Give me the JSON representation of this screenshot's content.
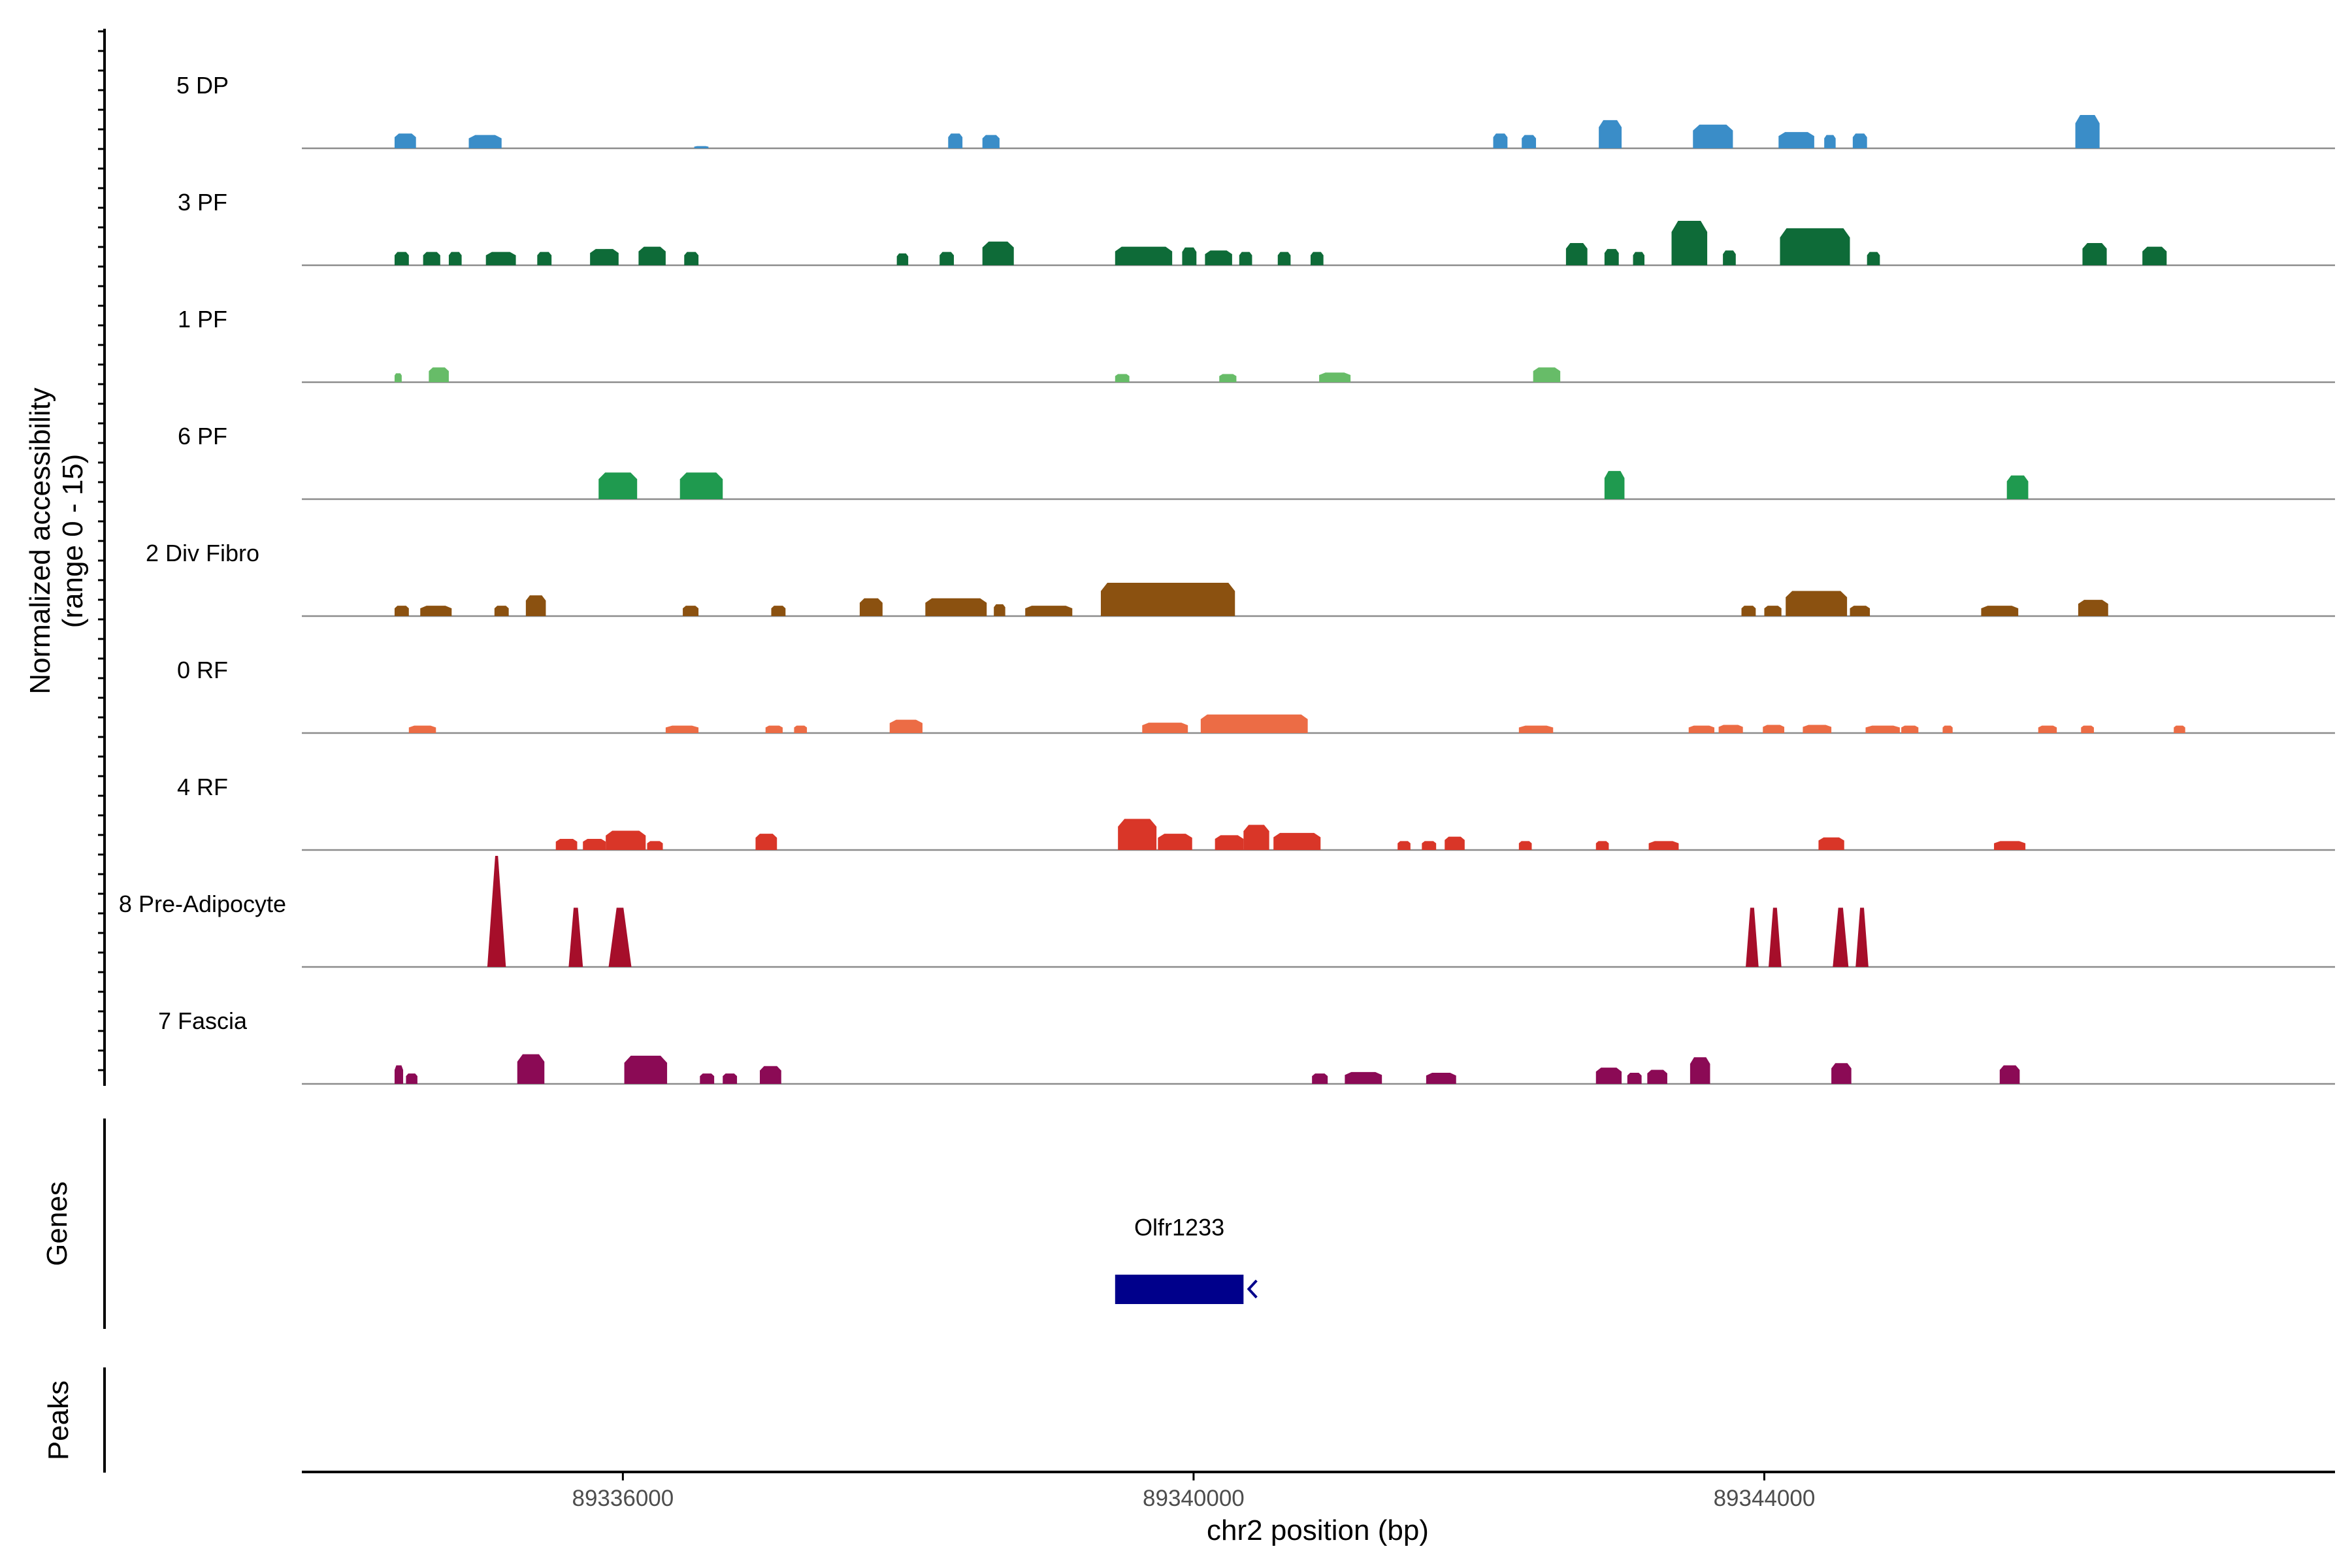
{
  "chart_data": {
    "type": "area",
    "coverage_ylabel_line1": "Normalized accessibility",
    "coverage_ylabel_line2": "(range 0 - 15)",
    "genes_label": "Genes",
    "peaks_label": "Peaks",
    "xlabel": "chr2 position (bp)",
    "x_ticks": [
      "89336000",
      "89340000",
      "89344000"
    ],
    "x_tick_values": [
      89336000,
      89340000,
      89344000
    ],
    "xlim": [
      89333750,
      89348000
    ],
    "ylim": [
      0,
      15
    ],
    "tracks": [
      {
        "name": "5 DP",
        "color": "#3A8DC8",
        "peaks": [
          [
            89334400,
            89334550,
            2.0
          ],
          [
            89334920,
            89335150,
            1.8
          ],
          [
            89336500,
            89336600,
            0.3
          ],
          [
            89338280,
            89338380,
            2.0
          ],
          [
            89338520,
            89338640,
            1.8
          ],
          [
            89342100,
            89342200,
            2.0
          ],
          [
            89342300,
            89342400,
            1.8
          ],
          [
            89342840,
            89343000,
            3.8
          ],
          [
            89343500,
            89343780,
            3.2
          ],
          [
            89344100,
            89344350,
            2.2
          ],
          [
            89344420,
            89344500,
            1.8
          ],
          [
            89344620,
            89344720,
            2.0
          ],
          [
            89346180,
            89346350,
            4.5
          ]
        ]
      },
      {
        "name": "3 PF",
        "color": "#0E6B38",
        "peaks": [
          [
            89334400,
            89334500,
            1.8
          ],
          [
            89334600,
            89334720,
            1.8
          ],
          [
            89334780,
            89334870,
            1.8
          ],
          [
            89335040,
            89335250,
            1.8
          ],
          [
            89335400,
            89335500,
            1.8
          ],
          [
            89335770,
            89335970,
            2.2
          ],
          [
            89336110,
            89336300,
            2.5
          ],
          [
            89336430,
            89336530,
            1.8
          ],
          [
            89337920,
            89338000,
            1.6
          ],
          [
            89338220,
            89338320,
            1.8
          ],
          [
            89338520,
            89338740,
            3.2
          ],
          [
            89339450,
            89339850,
            2.5
          ],
          [
            89339920,
            89340020,
            2.4
          ],
          [
            89340080,
            89340270,
            2.0
          ],
          [
            89340320,
            89340410,
            1.8
          ],
          [
            89340590,
            89340680,
            1.8
          ],
          [
            89340820,
            89340910,
            1.8
          ],
          [
            89342610,
            89342760,
            3.0
          ],
          [
            89342880,
            89342980,
            2.2
          ],
          [
            89343080,
            89343160,
            1.8
          ],
          [
            89343350,
            89343600,
            6.0
          ],
          [
            89343710,
            89343800,
            2.0
          ],
          [
            89344110,
            89344600,
            5.0
          ],
          [
            89344720,
            89344810,
            1.8
          ],
          [
            89346230,
            89346400,
            3.0
          ],
          [
            89346650,
            89346820,
            2.5
          ]
        ]
      },
      {
        "name": "1 PF",
        "color": "#67BC68",
        "peaks": [
          [
            89334400,
            89334450,
            1.2
          ],
          [
            89334640,
            89334780,
            2.0
          ],
          [
            89339450,
            89339550,
            1.1
          ],
          [
            89340180,
            89340300,
            1.1
          ],
          [
            89340880,
            89341100,
            1.3
          ],
          [
            89342380,
            89342570,
            2.0
          ]
        ]
      },
      {
        "name": "6 PF",
        "color": "#1F9A4F",
        "peaks": [
          [
            89335830,
            89336100,
            3.6
          ],
          [
            89336400,
            89336700,
            3.6
          ],
          [
            89342880,
            89343020,
            3.8
          ],
          [
            89345700,
            89345850,
            3.2
          ]
        ]
      },
      {
        "name": "2 Div Fibro",
        "color": "#8B5110",
        "peaks": [
          [
            89334400,
            89334500,
            1.4
          ],
          [
            89334580,
            89334800,
            1.4
          ],
          [
            89335100,
            89335200,
            1.4
          ],
          [
            89335320,
            89335460,
            2.8
          ],
          [
            89336420,
            89336530,
            1.4
          ],
          [
            89337040,
            89337140,
            1.4
          ],
          [
            89337660,
            89337820,
            2.4
          ],
          [
            89338120,
            89338550,
            2.4
          ],
          [
            89338600,
            89338680,
            1.6
          ],
          [
            89338820,
            89339150,
            1.4
          ],
          [
            89339350,
            89340290,
            4.5
          ],
          [
            89343840,
            89343940,
            1.4
          ],
          [
            89344000,
            89344120,
            1.4
          ],
          [
            89344150,
            89344580,
            3.4
          ],
          [
            89344600,
            89344740,
            1.4
          ],
          [
            89345520,
            89345780,
            1.4
          ],
          [
            89346200,
            89346410,
            2.2
          ]
        ]
      },
      {
        "name": "0 RF",
        "color": "#EC6C45",
        "peaks": [
          [
            89334500,
            89334690,
            1.0
          ],
          [
            89336300,
            89336530,
            1.0
          ],
          [
            89337000,
            89337120,
            1.0
          ],
          [
            89337200,
            89337290,
            1.0
          ],
          [
            89337870,
            89338100,
            1.8
          ],
          [
            89339640,
            89339960,
            1.4
          ],
          [
            89340050,
            89340800,
            2.5
          ],
          [
            89342280,
            89342520,
            1.0
          ],
          [
            89343470,
            89343650,
            1.0
          ],
          [
            89343680,
            89343850,
            1.1
          ],
          [
            89343990,
            89344140,
            1.1
          ],
          [
            89344270,
            89344470,
            1.1
          ],
          [
            89344710,
            89344950,
            1.0
          ],
          [
            89344960,
            89345080,
            1.0
          ],
          [
            89345250,
            89345320,
            1.0
          ],
          [
            89345920,
            89346050,
            1.0
          ],
          [
            89346220,
            89346310,
            1.0
          ],
          [
            89346870,
            89346950,
            1.0
          ]
        ]
      },
      {
        "name": "4 RF",
        "color": "#D93628",
        "peaks": [
          [
            89335530,
            89335680,
            1.5
          ],
          [
            89335720,
            89335880,
            1.5
          ],
          [
            89335880,
            89336160,
            2.6
          ],
          [
            89336170,
            89336280,
            1.2
          ],
          [
            89336930,
            89337080,
            2.2
          ],
          [
            89339470,
            89339740,
            4.2
          ],
          [
            89339750,
            89339990,
            2.2
          ],
          [
            89340150,
            89340350,
            2.0
          ],
          [
            89340350,
            89340530,
            3.4
          ],
          [
            89340560,
            89340890,
            2.3
          ],
          [
            89341430,
            89341520,
            1.2
          ],
          [
            89341600,
            89341700,
            1.2
          ],
          [
            89341760,
            89341900,
            1.8
          ],
          [
            89342280,
            89342370,
            1.2
          ],
          [
            89342820,
            89342910,
            1.2
          ],
          [
            89343190,
            89343400,
            1.2
          ],
          [
            89344380,
            89344560,
            1.7
          ],
          [
            89345610,
            89345830,
            1.2
          ]
        ]
      },
      {
        "name": "8 Pre-Adipocyte",
        "color": "#A60E2A",
        "peaks": [
          [
            89335050,
            89335180,
            15.0
          ],
          [
            89335620,
            89335720,
            8.0
          ],
          [
            89335900,
            89336060,
            8.0
          ],
          [
            89343870,
            89343960,
            8.0
          ],
          [
            89344030,
            89344120,
            8.0
          ],
          [
            89344480,
            89344590,
            8.0
          ],
          [
            89344640,
            89344730,
            8.0
          ]
        ]
      },
      {
        "name": "7 Fascia",
        "color": "#8B0A55",
        "peaks": [
          [
            89334400,
            89334460,
            2.5
          ],
          [
            89334480,
            89334560,
            1.4
          ],
          [
            89335260,
            89335450,
            4.0
          ],
          [
            89336010,
            89336310,
            3.8
          ],
          [
            89336540,
            89336640,
            1.4
          ],
          [
            89336700,
            89336800,
            1.4
          ],
          [
            89336960,
            89337110,
            2.4
          ],
          [
            89340830,
            89340940,
            1.4
          ],
          [
            89341060,
            89341320,
            1.6
          ],
          [
            89341630,
            89341840,
            1.5
          ],
          [
            89342820,
            89343000,
            2.2
          ],
          [
            89343040,
            89343140,
            1.5
          ],
          [
            89343180,
            89343320,
            1.9
          ],
          [
            89343480,
            89343620,
            3.6
          ],
          [
            89344470,
            89344610,
            2.8
          ],
          [
            89345650,
            89345790,
            2.5
          ]
        ]
      }
    ],
    "genes": [
      {
        "name": "Olfr1233",
        "start": 89339450,
        "end": 89340350,
        "strand": "-",
        "color": "#00008B"
      }
    ]
  }
}
